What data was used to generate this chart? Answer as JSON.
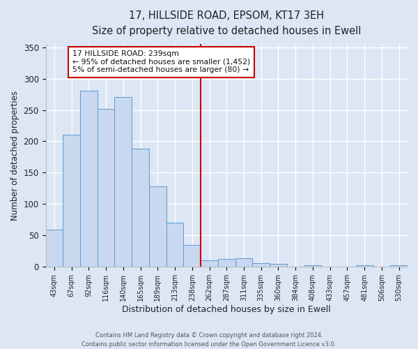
{
  "title": "17, HILLSIDE ROAD, EPSOM, KT17 3EH",
  "subtitle": "Size of property relative to detached houses in Ewell",
  "xlabel": "Distribution of detached houses by size in Ewell",
  "ylabel": "Number of detached properties",
  "bar_labels": [
    "43sqm",
    "67sqm",
    "92sqm",
    "116sqm",
    "140sqm",
    "165sqm",
    "189sqm",
    "213sqm",
    "238sqm",
    "262sqm",
    "287sqm",
    "311sqm",
    "335sqm",
    "360sqm",
    "384sqm",
    "408sqm",
    "433sqm",
    "457sqm",
    "481sqm",
    "506sqm",
    "530sqm"
  ],
  "bar_values": [
    59,
    210,
    281,
    252,
    271,
    188,
    128,
    70,
    35,
    10,
    13,
    14,
    6,
    5,
    0,
    3,
    0,
    0,
    3,
    0,
    3
  ],
  "bar_color": "#c8d8ee",
  "bar_edge_color": "#5b9bd5",
  "vline_x": 8.5,
  "vline_color": "#cc0000",
  "annotation_title": "17 HILLSIDE ROAD: 239sqm",
  "annotation_line1": "← 95% of detached houses are smaller (1,452)",
  "annotation_line2": "5% of semi-detached houses are larger (80) →",
  "annotation_box_color": "#ffffff",
  "annotation_box_edge": "#cc0000",
  "ylim": [
    0,
    355
  ],
  "yticks": [
    0,
    50,
    100,
    150,
    200,
    250,
    300,
    350
  ],
  "background_color": "#dce6f5",
  "grid_color": "#ffffff",
  "footer1": "Contains HM Land Registry data © Crown copyright and database right 2024.",
  "footer2": "Contains public sector information licensed under the Open Government Licence v3.0."
}
